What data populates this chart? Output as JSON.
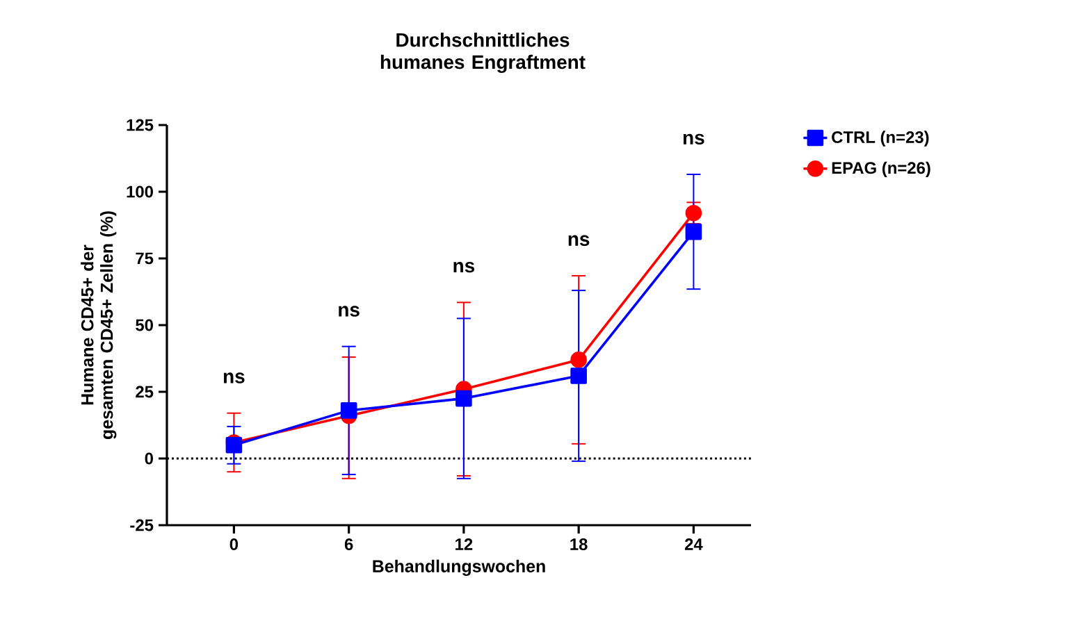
{
  "chart_data": {
    "type": "line",
    "title": "Durchschnittliches humanes Engraftment",
    "xlabel": "Behandlungswochen",
    "ylabel": "Humane CD45+ der gesamten CD45+ Zellen (%)",
    "x": [
      0,
      6,
      12,
      18,
      24
    ],
    "series": [
      {
        "name": "CTRL (n=23)",
        "color": "#0000ff",
        "marker": "square",
        "values": [
          5,
          18,
          22.5,
          31,
          85
        ],
        "errors": [
          7,
          24,
          30,
          32,
          21.5
        ]
      },
      {
        "name": "EPAG (n=26)",
        "color": "#ff0000",
        "marker": "circle",
        "values": [
          6,
          16,
          26,
          37,
          92
        ],
        "errors": [
          11,
          [
            -7.5,
            38
          ],
          32.5,
          31.5,
          4
        ]
      }
    ],
    "xlim": [
      -3.5,
      27
    ],
    "xticks": [
      0,
      6,
      12,
      18,
      24
    ],
    "ylim": [
      -25,
      125
    ],
    "yticks": [
      -25,
      0,
      25,
      50,
      75,
      100,
      125
    ],
    "ref_lines": [
      {
        "axis": "y",
        "value": 0,
        "color": "#000000",
        "line_style": "dotted"
      }
    ],
    "annotations": [
      "ns",
      "ns",
      "ns",
      "ns",
      "ns"
    ],
    "legend": "right",
    "grid": false,
    "line_style": "solid"
  }
}
